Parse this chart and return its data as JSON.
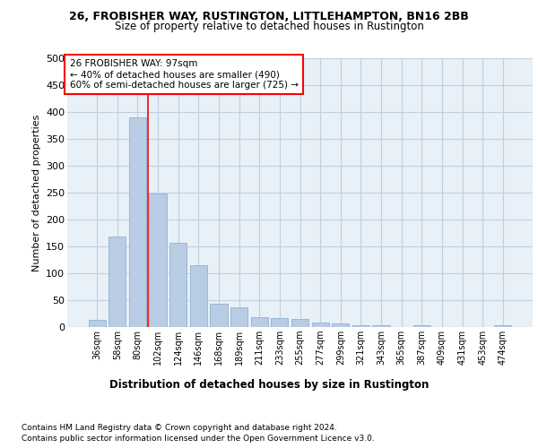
{
  "title1": "26, FROBISHER WAY, RUSTINGTON, LITTLEHAMPTON, BN16 2BB",
  "title2": "Size of property relative to detached houses in Rustington",
  "xlabel": "Distribution of detached houses by size in Rustington",
  "ylabel": "Number of detached properties",
  "footer1": "Contains HM Land Registry data © Crown copyright and database right 2024.",
  "footer2": "Contains public sector information licensed under the Open Government Licence v3.0.",
  "categories": [
    "36sqm",
    "58sqm",
    "80sqm",
    "102sqm",
    "124sqm",
    "146sqm",
    "168sqm",
    "189sqm",
    "211sqm",
    "233sqm",
    "255sqm",
    "277sqm",
    "299sqm",
    "321sqm",
    "343sqm",
    "365sqm",
    "387sqm",
    "409sqm",
    "431sqm",
    "453sqm",
    "474sqm"
  ],
  "values": [
    13,
    168,
    390,
    248,
    157,
    115,
    43,
    37,
    18,
    16,
    15,
    9,
    6,
    4,
    3,
    0,
    4,
    0,
    0,
    0,
    4
  ],
  "bar_color": "#b8cce4",
  "bar_edgecolor": "#9ab8d4",
  "grid_color": "#c0d0e0",
  "background_color": "#e8f0f8",
  "annotation_line1": "26 FROBISHER WAY: 97sqm",
  "annotation_line2": "← 40% of detached houses are smaller (490)",
  "annotation_line3": "60% of semi-detached houses are larger (725) →",
  "red_line_x": 2.5,
  "ylim": [
    0,
    500
  ],
  "yticks": [
    0,
    50,
    100,
    150,
    200,
    250,
    300,
    350,
    400,
    450,
    500
  ]
}
